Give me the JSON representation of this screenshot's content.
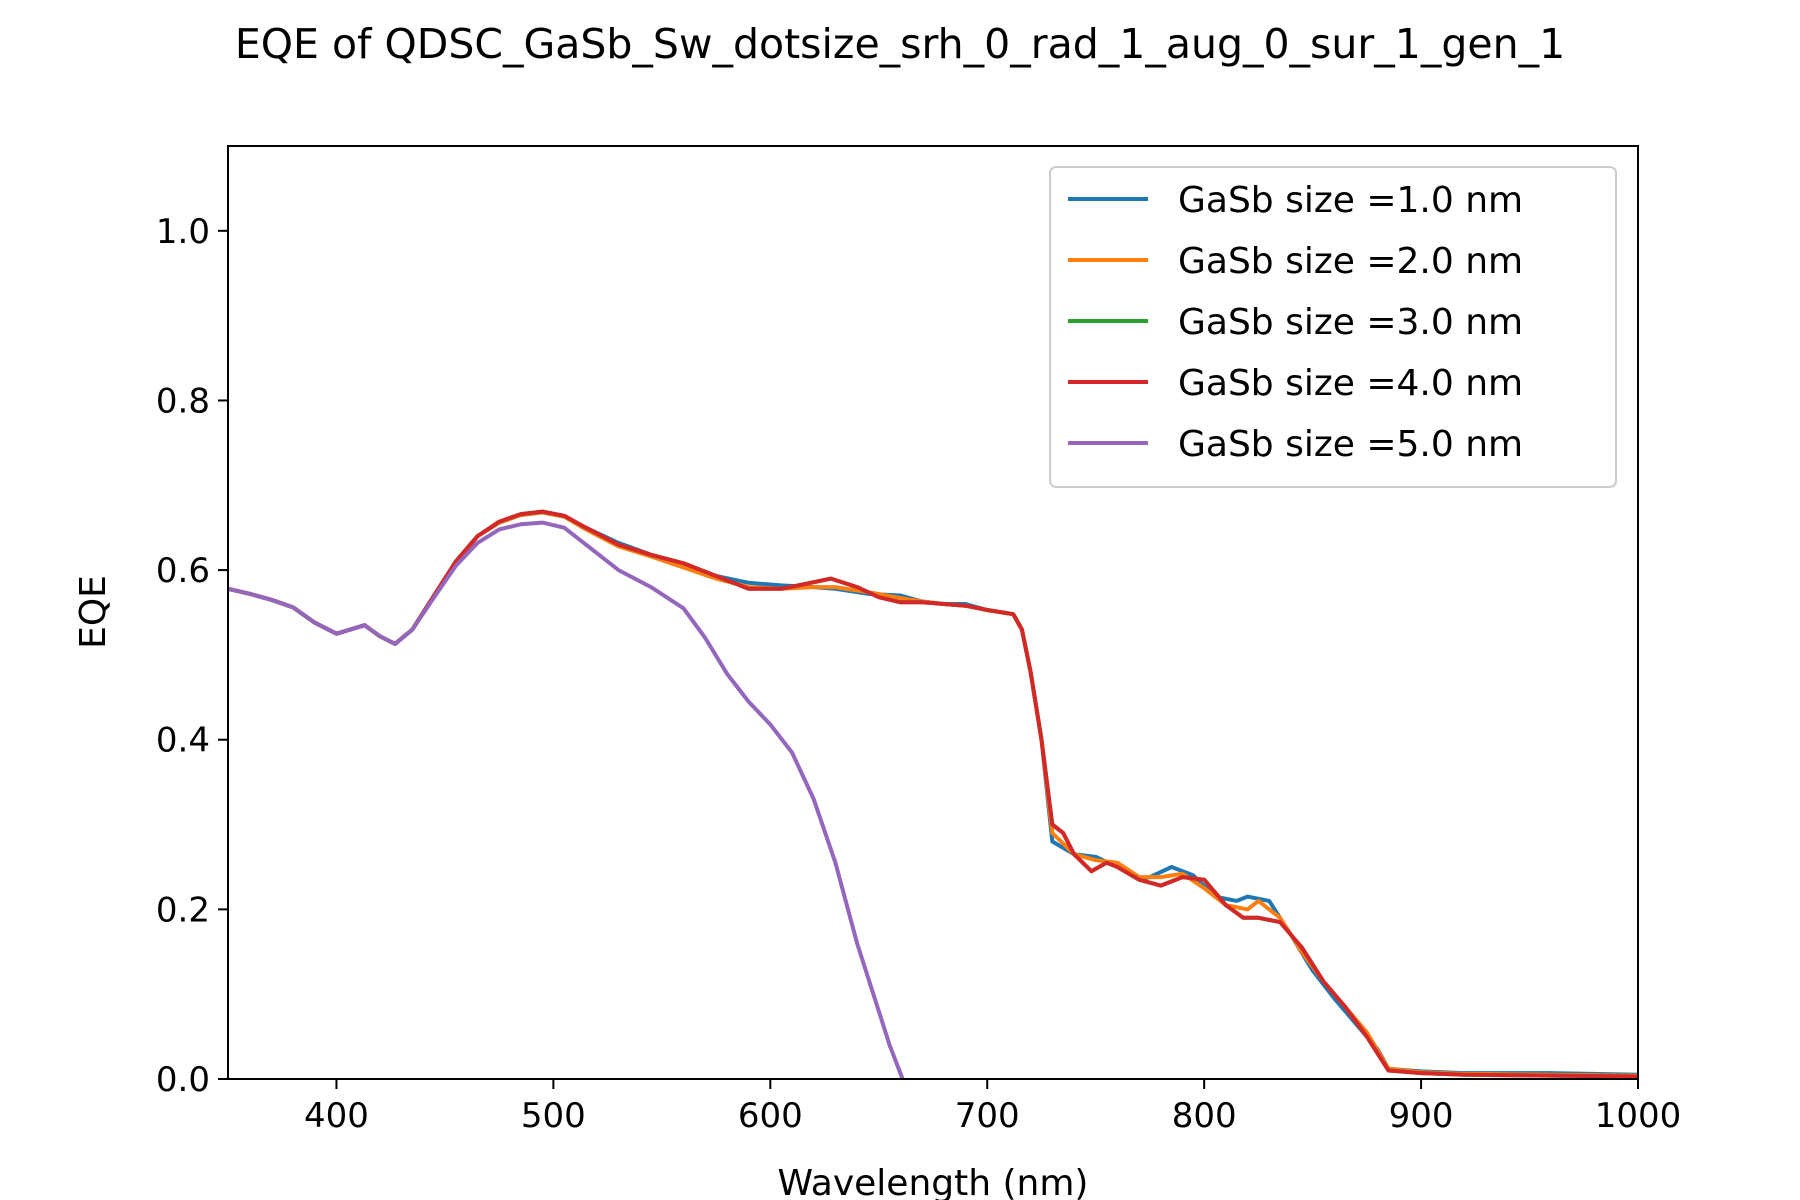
{
  "chart_data": {
    "type": "line",
    "title": "EQE of  QDSC_GaSb_Sw_dotsize_srh_0_rad_1_aug_0_sur_1_gen_1",
    "xlabel": "Wavelength (nm)",
    "ylabel": "EQE",
    "xlim": [
      350,
      1000
    ],
    "ylim": [
      0,
      1.1
    ],
    "xticks": [
      400,
      500,
      600,
      700,
      800,
      900,
      1000
    ],
    "xtick_labels": [
      "400",
      "500",
      "600",
      "700",
      "800",
      "900",
      "1000"
    ],
    "yticks": [
      0.0,
      0.2,
      0.4,
      0.6,
      0.8,
      1.0
    ],
    "ytick_labels": [
      "0.0",
      "0.2",
      "0.4",
      "0.6",
      "0.8",
      "1.0"
    ],
    "grid": false,
    "legend_position": "top-right",
    "series": [
      {
        "name": "GaSb size =1.0 nm",
        "color": "#1f77b4",
        "x": [
          350,
          360,
          370,
          380,
          390,
          400,
          413,
          420,
          427,
          435,
          445,
          455,
          465,
          475,
          485,
          495,
          505,
          515,
          530,
          545,
          560,
          575,
          590,
          605,
          620,
          630,
          645,
          660,
          670,
          680,
          690,
          700,
          712,
          716,
          720,
          725,
          730,
          740,
          750,
          760,
          770,
          775,
          785,
          795,
          805,
          815,
          820,
          830,
          840,
          850,
          860,
          870,
          880,
          885,
          900,
          920,
          960,
          1000
        ],
        "y": [
          0.578,
          0.572,
          0.565,
          0.556,
          0.538,
          0.525,
          0.535,
          0.522,
          0.513,
          0.53,
          0.57,
          0.61,
          0.64,
          0.656,
          0.665,
          0.668,
          0.663,
          0.65,
          0.632,
          0.618,
          0.605,
          0.593,
          0.585,
          0.582,
          0.58,
          0.578,
          0.572,
          0.57,
          0.563,
          0.56,
          0.56,
          0.553,
          0.548,
          0.53,
          0.48,
          0.4,
          0.28,
          0.265,
          0.262,
          0.25,
          0.235,
          0.238,
          0.25,
          0.24,
          0.215,
          0.21,
          0.215,
          0.21,
          0.17,
          0.128,
          0.095,
          0.065,
          0.035,
          0.012,
          0.009,
          0.007,
          0.007,
          0.005
        ]
      },
      {
        "name": "GaSb size =2.0 nm",
        "color": "#ff7f0e",
        "x": [
          350,
          360,
          370,
          380,
          390,
          400,
          413,
          420,
          427,
          435,
          445,
          455,
          465,
          475,
          485,
          495,
          505,
          515,
          530,
          545,
          560,
          575,
          590,
          605,
          620,
          630,
          645,
          660,
          670,
          680,
          690,
          700,
          712,
          716,
          720,
          725,
          730,
          740,
          750,
          760,
          770,
          780,
          790,
          800,
          810,
          820,
          825,
          835,
          845,
          855,
          865,
          875,
          885,
          900,
          920,
          960,
          1000
        ],
        "y": [
          0.578,
          0.572,
          0.565,
          0.556,
          0.538,
          0.525,
          0.535,
          0.522,
          0.513,
          0.53,
          0.57,
          0.61,
          0.64,
          0.656,
          0.665,
          0.668,
          0.663,
          0.648,
          0.628,
          0.616,
          0.603,
          0.59,
          0.58,
          0.578,
          0.58,
          0.58,
          0.574,
          0.567,
          0.563,
          0.56,
          0.558,
          0.553,
          0.548,
          0.53,
          0.48,
          0.4,
          0.29,
          0.265,
          0.258,
          0.255,
          0.238,
          0.238,
          0.242,
          0.225,
          0.205,
          0.2,
          0.21,
          0.19,
          0.15,
          0.115,
          0.085,
          0.055,
          0.012,
          0.008,
          0.006,
          0.005,
          0.004
        ]
      },
      {
        "name": "GaSb size =3.0 nm",
        "color": "#2ca02c",
        "x": [
          350,
          360,
          370,
          380,
          390,
          400,
          413,
          420,
          427,
          435,
          445,
          455,
          465,
          475,
          485,
          495,
          505,
          515,
          530,
          545,
          560,
          575,
          590,
          605,
          615,
          628,
          640,
          650,
          660,
          670,
          680,
          690,
          700,
          712,
          716,
          720,
          725,
          730,
          735,
          740,
          748,
          755,
          760,
          770,
          780,
          790,
          800,
          810,
          818,
          825,
          835,
          845,
          855,
          865,
          875,
          885,
          900,
          920,
          960,
          1000
        ],
        "y": [
          0.578,
          0.572,
          0.565,
          0.556,
          0.538,
          0.525,
          0.535,
          0.522,
          0.513,
          0.53,
          0.57,
          0.61,
          0.64,
          0.657,
          0.666,
          0.669,
          0.664,
          0.65,
          0.63,
          0.618,
          0.608,
          0.593,
          0.578,
          0.578,
          0.583,
          0.59,
          0.58,
          0.568,
          0.562,
          0.562,
          0.56,
          0.558,
          0.553,
          0.548,
          0.53,
          0.48,
          0.4,
          0.3,
          0.29,
          0.265,
          0.245,
          0.255,
          0.25,
          0.235,
          0.228,
          0.238,
          0.235,
          0.205,
          0.19,
          0.19,
          0.185,
          0.155,
          0.115,
          0.085,
          0.05,
          0.01,
          0.007,
          0.005,
          0.004,
          0.003
        ]
      },
      {
        "name": "GaSb size =4.0 nm",
        "color": "#d62728",
        "x": [
          350,
          360,
          370,
          380,
          390,
          400,
          413,
          420,
          427,
          435,
          445,
          455,
          465,
          475,
          485,
          495,
          505,
          515,
          530,
          545,
          560,
          575,
          590,
          605,
          615,
          628,
          640,
          650,
          660,
          670,
          680,
          690,
          700,
          712,
          716,
          720,
          725,
          730,
          735,
          740,
          748,
          755,
          760,
          770,
          780,
          790,
          800,
          810,
          818,
          825,
          835,
          845,
          855,
          865,
          875,
          885,
          900,
          920,
          960,
          1000
        ],
        "y": [
          0.578,
          0.572,
          0.565,
          0.556,
          0.538,
          0.525,
          0.535,
          0.522,
          0.513,
          0.53,
          0.57,
          0.61,
          0.64,
          0.657,
          0.666,
          0.669,
          0.664,
          0.65,
          0.63,
          0.618,
          0.608,
          0.593,
          0.578,
          0.578,
          0.583,
          0.59,
          0.58,
          0.568,
          0.562,
          0.562,
          0.56,
          0.558,
          0.553,
          0.548,
          0.53,
          0.48,
          0.4,
          0.3,
          0.29,
          0.265,
          0.245,
          0.255,
          0.25,
          0.235,
          0.228,
          0.238,
          0.235,
          0.205,
          0.19,
          0.19,
          0.185,
          0.155,
          0.115,
          0.085,
          0.05,
          0.01,
          0.007,
          0.005,
          0.004,
          0.003
        ]
      },
      {
        "name": "GaSb size =5.0 nm",
        "color": "#9467bd",
        "x": [
          350,
          360,
          370,
          380,
          390,
          400,
          413,
          420,
          427,
          435,
          445,
          455,
          465,
          475,
          485,
          495,
          505,
          515,
          530,
          545,
          560,
          570,
          580,
          590,
          600,
          610,
          620,
          630,
          640,
          650,
          655,
          661
        ],
        "y": [
          0.578,
          0.572,
          0.565,
          0.556,
          0.538,
          0.525,
          0.535,
          0.522,
          0.513,
          0.53,
          0.568,
          0.605,
          0.632,
          0.648,
          0.654,
          0.656,
          0.65,
          0.63,
          0.6,
          0.58,
          0.555,
          0.52,
          0.478,
          0.445,
          0.418,
          0.385,
          0.33,
          0.255,
          0.16,
          0.08,
          0.04,
          0.0
        ]
      }
    ]
  }
}
